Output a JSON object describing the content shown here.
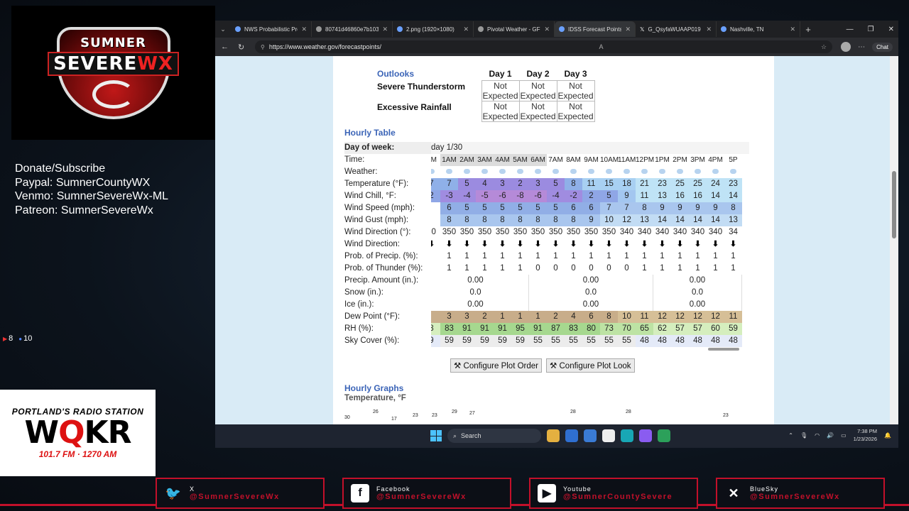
{
  "overlay": {
    "logo_top": "SUMNER",
    "logo_mid_a": "SEVERE",
    "logo_mid_b": "WX",
    "donate_lines": [
      "Donate/Subscribe",
      "Paypal: SumnerCountyWX",
      "Venmo: SumnerSevereWx-ML",
      "Patreon: SumnerSevereWx"
    ],
    "yt_count": "8",
    "fb_count": "10",
    "radio_top": "PORTLAND'S RADIO STATION",
    "radio_big_a": "W",
    "radio_big_b": "Q",
    "radio_big_c": "KR",
    "radio_sub": "101.7 FM · 1270 AM",
    "socials": [
      {
        "icon": "x-icon",
        "name": "X",
        "handle": "@SumnerSevereWx"
      },
      {
        "icon": "facebook-icon",
        "name": "Facebook",
        "handle": "@SumnerSevereWx"
      },
      {
        "icon": "youtube-icon",
        "name": "Youtube",
        "handle": "@SumnerCountySevere"
      },
      {
        "icon": "bluesky-icon",
        "name": "BlueSky",
        "handle": "@SumnerSevereWx"
      }
    ]
  },
  "browser": {
    "tabs": [
      {
        "title": "NWS Probabilistic Preci",
        "icon": "nws-icon"
      },
      {
        "title": "80741d46860e7b1038a",
        "icon": "gear-icon"
      },
      {
        "title": "2.png (1920×1080)",
        "icon": "image-icon"
      },
      {
        "title": "Pivotal Weather - GFS",
        "icon": "pivotal-icon"
      },
      {
        "title": "IDSS Forecast Points",
        "icon": "nws-icon",
        "active": true
      },
      {
        "title": "G_QsyfaWUAAP019 (19",
        "icon": "x-icon"
      },
      {
        "title": "Nashville, TN",
        "icon": "nws-icon"
      }
    ],
    "url": "https://www.weather.gov/forecastpoints/",
    "chat_label": "Chat"
  },
  "outlooks": {
    "heading": "Outlooks",
    "days": [
      "Day 1",
      "Day 2",
      "Day 3"
    ],
    "rows": [
      {
        "label": "Severe Thunderstorm",
        "values": [
          "Not Expected",
          "Not Expected",
          "Not Expected"
        ]
      },
      {
        "label": "Excessive Rainfall",
        "values": [
          "Not Expected",
          "Not Expected",
          "Not Expected"
        ]
      }
    ]
  },
  "hourly": {
    "heading": "Hourly Table",
    "day_of_week_label": "Day of week:",
    "day_value": "day 1/30",
    "labels": [
      "Time:",
      "Weather:",
      "Temperature (°F):",
      "Wind Chill, °F:",
      "Wind Speed (mph):",
      "Wind Gust (mph):",
      "Wind Direction (°):",
      "Wind Direction:",
      "Prob. of Precip. (%):",
      "Prob. of Thunder (%):",
      "Precip. Amount (in.):",
      "Snow (in.):",
      "Ice (in.):",
      "Dew Point (°F):",
      "RH (%):",
      "Sky Cover (%):"
    ],
    "times": [
      "AM",
      "1AM",
      "2AM",
      "3AM",
      "4AM",
      "5AM",
      "6AM",
      "7AM",
      "8AM",
      "9AM",
      "10AM",
      "11AM",
      "12PM",
      "1PM",
      "2PM",
      "3PM",
      "4PM",
      "5P"
    ],
    "temperature": [
      "7",
      "7",
      "5",
      "4",
      "3",
      "2",
      "3",
      "5",
      "8",
      "11",
      "15",
      "18",
      "21",
      "23",
      "25",
      "25",
      "24",
      "23"
    ],
    "wind_chill": [
      "2",
      "-3",
      "-4",
      "-5",
      "-6",
      "-8",
      "-6",
      "-4",
      "-2",
      "2",
      "5",
      "9",
      "11",
      "13",
      "16",
      "16",
      "14",
      "14"
    ],
    "wind_speed": [
      "",
      "6",
      "5",
      "5",
      "5",
      "5",
      "5",
      "5",
      "6",
      "6",
      "7",
      "7",
      "8",
      "9",
      "9",
      "9",
      "9",
      "8"
    ],
    "wind_gust": [
      "",
      "8",
      "8",
      "8",
      "8",
      "8",
      "8",
      "8",
      "8",
      "9",
      "10",
      "12",
      "13",
      "14",
      "14",
      "14",
      "14",
      "13"
    ],
    "wind_dir_deg": [
      "50",
      "350",
      "350",
      "350",
      "350",
      "350",
      "350",
      "350",
      "350",
      "350",
      "350",
      "340",
      "340",
      "340",
      "340",
      "340",
      "340",
      "34"
    ],
    "prob_precip": [
      "",
      "1",
      "1",
      "1",
      "1",
      "1",
      "1",
      "1",
      "1",
      "1",
      "1",
      "1",
      "1",
      "1",
      "1",
      "1",
      "1",
      "1"
    ],
    "prob_thunder": [
      "",
      "1",
      "1",
      "1",
      "1",
      "1",
      "0",
      "0",
      "0",
      "0",
      "0",
      "0",
      "1",
      "1",
      "1",
      "1",
      "1",
      "1"
    ],
    "precip_amount": [
      "0.00",
      "0.00",
      "0.00"
    ],
    "snow": [
      "0.0",
      "0.0",
      "0.0"
    ],
    "ice": [
      "0.00",
      "0.00",
      "0.00"
    ],
    "dew_point": [
      "",
      "3",
      "3",
      "2",
      "1",
      "1",
      "1",
      "2",
      "4",
      "6",
      "8",
      "10",
      "11",
      "12",
      "12",
      "12",
      "12",
      "11"
    ],
    "rh": [
      "8",
      "83",
      "91",
      "91",
      "91",
      "95",
      "91",
      "87",
      "83",
      "80",
      "73",
      "70",
      "65",
      "62",
      "57",
      "57",
      "60",
      "59"
    ],
    "sky_cover": [
      "9",
      "59",
      "59",
      "59",
      "59",
      "59",
      "55",
      "55",
      "55",
      "55",
      "55",
      "55",
      "48",
      "48",
      "48",
      "48",
      "48",
      "48"
    ]
  },
  "buttons": {
    "plot_order": "Configure Plot Order",
    "plot_look": "Configure Plot Look"
  },
  "graphs": {
    "heading": "Hourly Graphs",
    "sub": "Temperature, °F",
    "visible_labels": [
      "30",
      "26",
      "17",
      "23",
      "23",
      "29",
      "27",
      "28",
      "28",
      "23"
    ]
  },
  "taskbar": {
    "search": "Search",
    "time": "7:38 PM",
    "date": "1/23/2026"
  }
}
